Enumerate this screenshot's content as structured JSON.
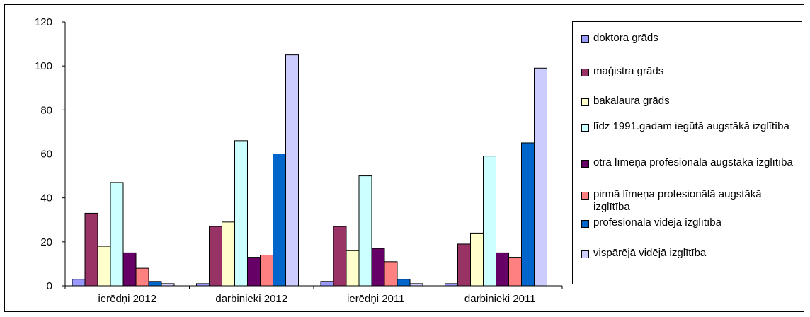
{
  "chart_data": {
    "type": "bar",
    "title": "",
    "xlabel": "",
    "ylabel": "",
    "ylim": [
      0,
      120
    ],
    "yticks": [
      0,
      20,
      40,
      60,
      80,
      100,
      120
    ],
    "grid": false,
    "legend_position": "right",
    "categories": [
      "ierēdņi 2012",
      "darbinieki 2012",
      "ierēdņi 2011",
      "darbinieki 2011"
    ],
    "series": [
      {
        "name": "doktora grāds",
        "color": "#9999FF",
        "values": [
          3,
          1,
          2,
          1
        ]
      },
      {
        "name": "maģistra grāds",
        "color": "#993366",
        "values": [
          33,
          27,
          27,
          19
        ]
      },
      {
        "name": "bakalaura grāds",
        "color": "#FFFFCC",
        "values": [
          18,
          29,
          16,
          24
        ]
      },
      {
        "name": "līdz 1991.gadam iegūtā augstākā izglītība",
        "color": "#CCFFFF",
        "values": [
          47,
          66,
          50,
          59
        ]
      },
      {
        "name": "otrā līmeņa profesionālā augstākā izglītība",
        "color": "#660066",
        "values": [
          15,
          13,
          17,
          15
        ]
      },
      {
        "name": "pirmā līmeņa profesionālā augstākā izglītība",
        "color": "#FF8080",
        "values": [
          8,
          14,
          11,
          13
        ]
      },
      {
        "name": "profesionālā vidējā izglītība",
        "color": "#0066CC",
        "values": [
          2,
          60,
          3,
          65
        ]
      },
      {
        "name": "vispārējā vidējā izglītība",
        "color": "#CCCCFF",
        "values": [
          1,
          105,
          1,
          99
        ]
      }
    ]
  }
}
